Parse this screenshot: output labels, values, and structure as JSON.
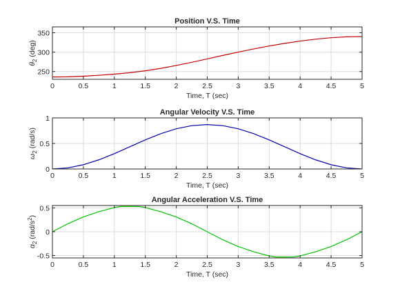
{
  "chart_data": [
    {
      "type": "line",
      "title": "Position V.S. Time",
      "xlabel": "Time, T (sec)",
      "ylabel_sym": "θ",
      "ylabel_sub": "2",
      "ylabel_unit": " (deg)",
      "xlim": [
        0,
        5
      ],
      "ylim": [
        230,
        365
      ],
      "xticks": [
        "0",
        "0.5",
        "1",
        "1.5",
        "2",
        "2.5",
        "3",
        "3.5",
        "4",
        "4.5",
        "5"
      ],
      "yticks": [
        "250",
        "300",
        "350"
      ],
      "grid": true,
      "series": [
        {
          "color": "#c00000",
          "x": [
            0,
            0.25,
            0.5,
            0.75,
            1,
            1.25,
            1.5,
            1.75,
            2,
            2.25,
            2.5,
            2.75,
            3,
            3.25,
            3.5,
            3.75,
            4,
            4.25,
            4.5,
            4.75,
            5
          ],
          "y": [
            236,
            236.4,
            238,
            240.3,
            243.3,
            247.1,
            252,
            258.2,
            265.6,
            273.8,
            282.5,
            291.5,
            300.1,
            308.3,
            315.8,
            322.6,
            328.5,
            333.4,
            337.1,
            339.4,
            340.1
          ]
        }
      ]
    },
    {
      "type": "line",
      "title": "Angular Velocity V.S. Time",
      "xlabel": "Time, T (sec)",
      "ylabel_sym": "ω",
      "ylabel_sub": "2",
      "ylabel_unit": " (rad/s)",
      "xlim": [
        0,
        5
      ],
      "ylim": [
        0,
        1
      ],
      "xticks": [
        "0",
        "0.5",
        "1",
        "1.5",
        "2",
        "2.5",
        "3",
        "3.5",
        "4",
        "4.5",
        "5"
      ],
      "yticks": [
        "0",
        "0.5",
        "1"
      ],
      "grid": true,
      "series": [
        {
          "color": "#0000b0",
          "x": [
            0,
            0.25,
            0.5,
            0.75,
            1,
            1.25,
            1.5,
            1.75,
            2,
            2.25,
            2.5,
            2.75,
            3,
            3.25,
            3.5,
            3.75,
            4,
            4.25,
            4.5,
            4.75,
            5
          ],
          "y": [
            0,
            0.021,
            0.083,
            0.179,
            0.3,
            0.435,
            0.57,
            0.692,
            0.788,
            0.849,
            0.87,
            0.849,
            0.788,
            0.692,
            0.57,
            0.435,
            0.3,
            0.179,
            0.083,
            0.021,
            0
          ]
        }
      ]
    },
    {
      "type": "line",
      "title": "Angular Acceleration V.S. Time",
      "xlabel": "Time, T (sec)",
      "ylabel_sym": "α",
      "ylabel_sub": "2",
      "ylabel_unit": " (rad/s",
      "ylabel_sup": "2",
      "ylabel_close": ")",
      "xlim": [
        0,
        5
      ],
      "ylim": [
        -0.55,
        0.55
      ],
      "xticks": [
        "0",
        "0.5",
        "1",
        "1.5",
        "2",
        "2.5",
        "3",
        "3.5",
        "4",
        "4.5",
        "5"
      ],
      "yticks": [
        "-0.5",
        "0",
        "0.5"
      ],
      "grid": true,
      "series": [
        {
          "color": "#00c000",
          "x": [
            0,
            0.25,
            0.5,
            0.75,
            1,
            1.1,
            1.25,
            1.4,
            1.5,
            1.75,
            2,
            2.25,
            2.5,
            2.75,
            3,
            3.25,
            3.5,
            3.6,
            3.75,
            3.9,
            4,
            4.25,
            4.5,
            4.75,
            5
          ],
          "y": [
            0,
            0.168,
            0.31,
            0.42,
            0.508,
            0.53,
            0.53,
            0.53,
            0.508,
            0.42,
            0.31,
            0.168,
            0,
            -0.168,
            -0.31,
            -0.42,
            -0.508,
            -0.53,
            -0.53,
            -0.53,
            -0.508,
            -0.42,
            -0.31,
            -0.168,
            0
          ]
        }
      ]
    }
  ]
}
